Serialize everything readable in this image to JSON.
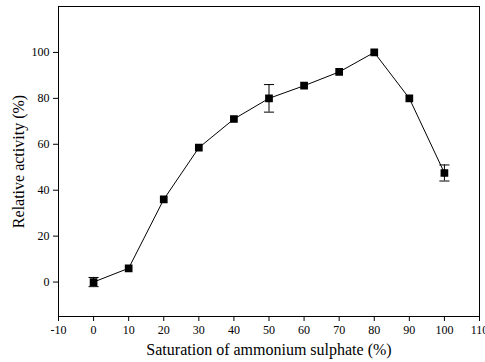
{
  "chart_data": {
    "type": "line",
    "x_label": "Saturation of ammonium sulphate (%)",
    "y_label": "Relative activity (%)",
    "x": [
      0,
      10,
      20,
      30,
      40,
      50,
      60,
      70,
      80,
      90,
      100
    ],
    "values": [
      0,
      6,
      36,
      58.5,
      71,
      80,
      85.5,
      91.5,
      100,
      80,
      47.5
    ],
    "errors": [
      2,
      0,
      0,
      0,
      0,
      6,
      0,
      0,
      0,
      0,
      3.5
    ],
    "color": "#000000",
    "marker": "square",
    "line_style": "solid",
    "xlim": [
      -10,
      110
    ],
    "xticks": [
      -10,
      0,
      10,
      20,
      30,
      40,
      50,
      60,
      70,
      80,
      90,
      100,
      110
    ],
    "ylim": [
      -15,
      120
    ],
    "yticks": [
      0,
      20,
      40,
      60,
      80,
      100
    ],
    "grid": false
  }
}
